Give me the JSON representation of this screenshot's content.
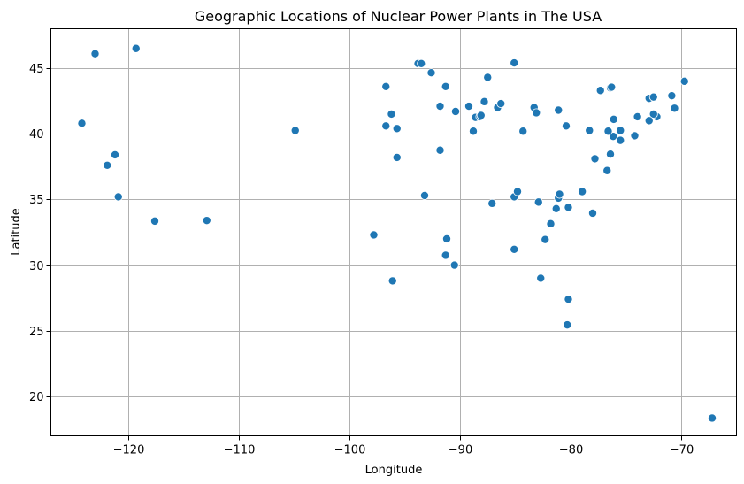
{
  "chart_data": {
    "type": "scatter",
    "title": "Geographic Locations of Nuclear Power Plants in The USA",
    "xlabel": "Longitude",
    "ylabel": "Latitude",
    "xlim": [
      -127,
      -65
    ],
    "ylim": [
      17,
      48
    ],
    "xticks": [
      -120,
      -110,
      -100,
      -90,
      -80,
      -70
    ],
    "xtick_labels": [
      "−120",
      "−110",
      "−100",
      "−90",
      "−80",
      "−70"
    ],
    "yticks": [
      20,
      25,
      30,
      35,
      40,
      45
    ],
    "ytick_labels": [
      "20",
      "25",
      "30",
      "35",
      "40",
      "45"
    ],
    "grid": true,
    "legend": "none",
    "marker_color": "#1f77b4",
    "marker_edge_color": "#ffffff",
    "points": [
      [
        -124.2,
        40.8
      ],
      [
        -123.0,
        46.1
      ],
      [
        -119.3,
        46.5
      ],
      [
        -121.9,
        37.6
      ],
      [
        -121.2,
        38.4
      ],
      [
        -120.9,
        35.2
      ],
      [
        -117.6,
        33.35
      ],
      [
        -112.9,
        33.4
      ],
      [
        -104.9,
        40.25
      ],
      [
        -97.8,
        32.3
      ],
      [
        -96.1,
        28.8
      ],
      [
        -96.7,
        40.6
      ],
      [
        -96.7,
        43.6
      ],
      [
        -96.2,
        41.5
      ],
      [
        -95.7,
        40.4
      ],
      [
        -95.7,
        38.2
      ],
      [
        -93.8,
        45.35
      ],
      [
        -93.5,
        45.35
      ],
      [
        -92.6,
        44.65
      ],
      [
        -93.2,
        35.3
      ],
      [
        -91.8,
        42.1
      ],
      [
        -91.8,
        38.75
      ],
      [
        -91.3,
        43.6
      ],
      [
        -91.2,
        32.0
      ],
      [
        -91.3,
        30.75
      ],
      [
        -90.5,
        30.0
      ],
      [
        -90.4,
        41.7
      ],
      [
        -89.2,
        42.1
      ],
      [
        -88.8,
        40.2
      ],
      [
        -88.6,
        41.25
      ],
      [
        -88.2,
        41.3
      ],
      [
        -88.1,
        41.4
      ],
      [
        -87.8,
        42.45
      ],
      [
        -87.5,
        44.3
      ],
      [
        -86.6,
        42.0
      ],
      [
        -86.3,
        42.3
      ],
      [
        -87.1,
        34.7
      ],
      [
        -85.1,
        45.4
      ],
      [
        -84.3,
        40.2
      ],
      [
        -83.3,
        42.0
      ],
      [
        -83.1,
        41.6
      ],
      [
        -81.1,
        41.8
      ],
      [
        -80.4,
        40.6
      ],
      [
        -85.1,
        35.2
      ],
      [
        -84.8,
        35.6
      ],
      [
        -82.9,
        34.8
      ],
      [
        -81.1,
        35.1
      ],
      [
        -81.0,
        35.4
      ],
      [
        -81.3,
        34.3
      ],
      [
        -80.2,
        34.4
      ],
      [
        -81.8,
        33.15
      ],
      [
        -82.3,
        31.95
      ],
      [
        -85.1,
        31.2
      ],
      [
        -82.7,
        29.0
      ],
      [
        -80.2,
        27.4
      ],
      [
        -80.3,
        25.45
      ],
      [
        -78.95,
        35.6
      ],
      [
        -78.0,
        33.95
      ],
      [
        -77.8,
        38.1
      ],
      [
        -76.7,
        37.2
      ],
      [
        -76.4,
        38.45
      ],
      [
        -76.15,
        39.8
      ],
      [
        -76.6,
        40.2
      ],
      [
        -76.1,
        41.1
      ],
      [
        -75.5,
        39.5
      ],
      [
        -75.5,
        40.25
      ],
      [
        -74.2,
        39.85
      ],
      [
        -78.3,
        40.25
      ],
      [
        -77.3,
        43.3
      ],
      [
        -76.4,
        43.5
      ],
      [
        -76.3,
        43.55
      ],
      [
        -73.95,
        41.3
      ],
      [
        -72.2,
        41.3
      ],
      [
        -72.5,
        41.5
      ],
      [
        -72.9,
        41.0
      ],
      [
        -72.9,
        42.7
      ],
      [
        -72.5,
        42.8
      ],
      [
        -70.85,
        42.9
      ],
      [
        -70.6,
        41.95
      ],
      [
        -69.7,
        44.0
      ],
      [
        -67.2,
        18.35
      ]
    ]
  }
}
